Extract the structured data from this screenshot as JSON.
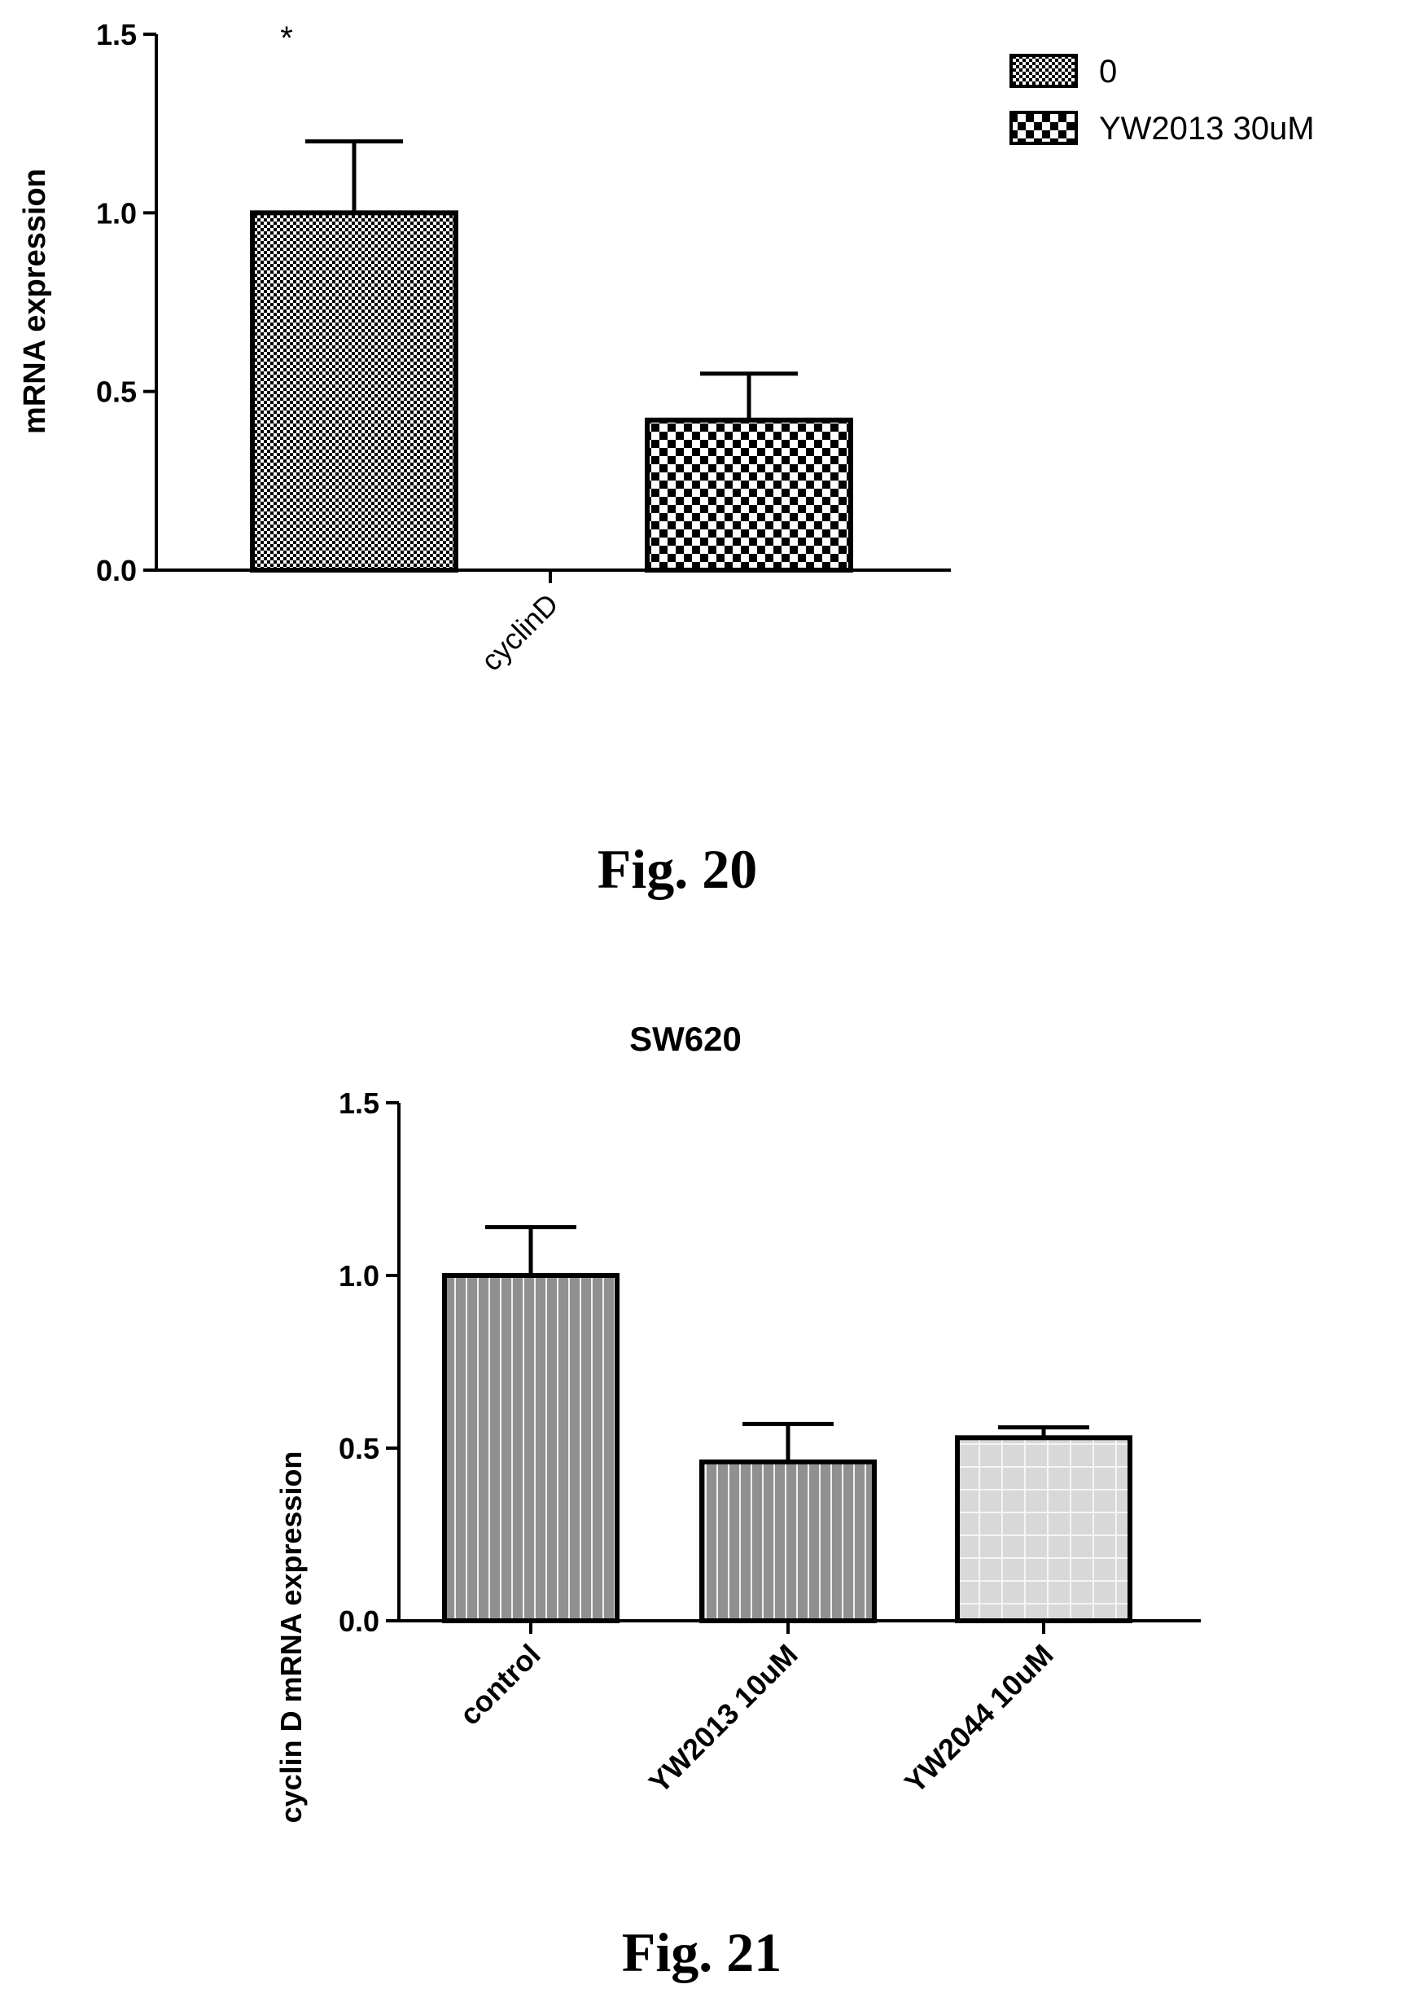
{
  "figures": [
    {
      "caption": "Fig. 20"
    },
    {
      "caption": "Fig. 21"
    }
  ],
  "chart_data": [
    {
      "type": "bar",
      "title": "",
      "xlabel": "",
      "ylabel": "mRNA expression",
      "ylim": [
        0,
        1.5
      ],
      "yticks": [
        "0.0",
        "0.5",
        "1.0",
        "1.5"
      ],
      "categories": [
        "cyclinD"
      ],
      "series": [
        {
          "name": "0",
          "values": [
            1.0
          ],
          "errors": [
            0.2
          ],
          "pattern": "fine-checker"
        },
        {
          "name": "YW2013 30uM",
          "values": [
            0.42
          ],
          "errors": [
            0.13
          ],
          "pattern": "coarse-checker"
        }
      ],
      "annotations": [
        "*"
      ],
      "legend_position": "top-right",
      "grid": false,
      "colors": {
        "bar_outline": "#000000",
        "fill_dark": "#000000",
        "fill_light": "#ffffff"
      }
    },
    {
      "type": "bar",
      "title": "SW620",
      "xlabel": "",
      "ylabel": "cyclin D mRNA expression",
      "ylim": [
        0,
        1.5
      ],
      "yticks": [
        "0.0",
        "0.5",
        "1.0",
        "1.5"
      ],
      "categories": [
        "control",
        "YW2013 10uM",
        "YW2044 10uM"
      ],
      "values": [
        1.0,
        0.46,
        0.53
      ],
      "errors": [
        0.14,
        0.11,
        0.03
      ],
      "patterns": [
        "vertical-stripes",
        "vertical-stripes",
        "grid"
      ],
      "grid": false,
      "colors": {
        "bar_outline": "#000000",
        "stripe_fill": "#909090",
        "stripe_line": "#f0f0f0",
        "grid_fill": "#d8d8d8",
        "grid_line": "#f5f5f5"
      }
    }
  ]
}
